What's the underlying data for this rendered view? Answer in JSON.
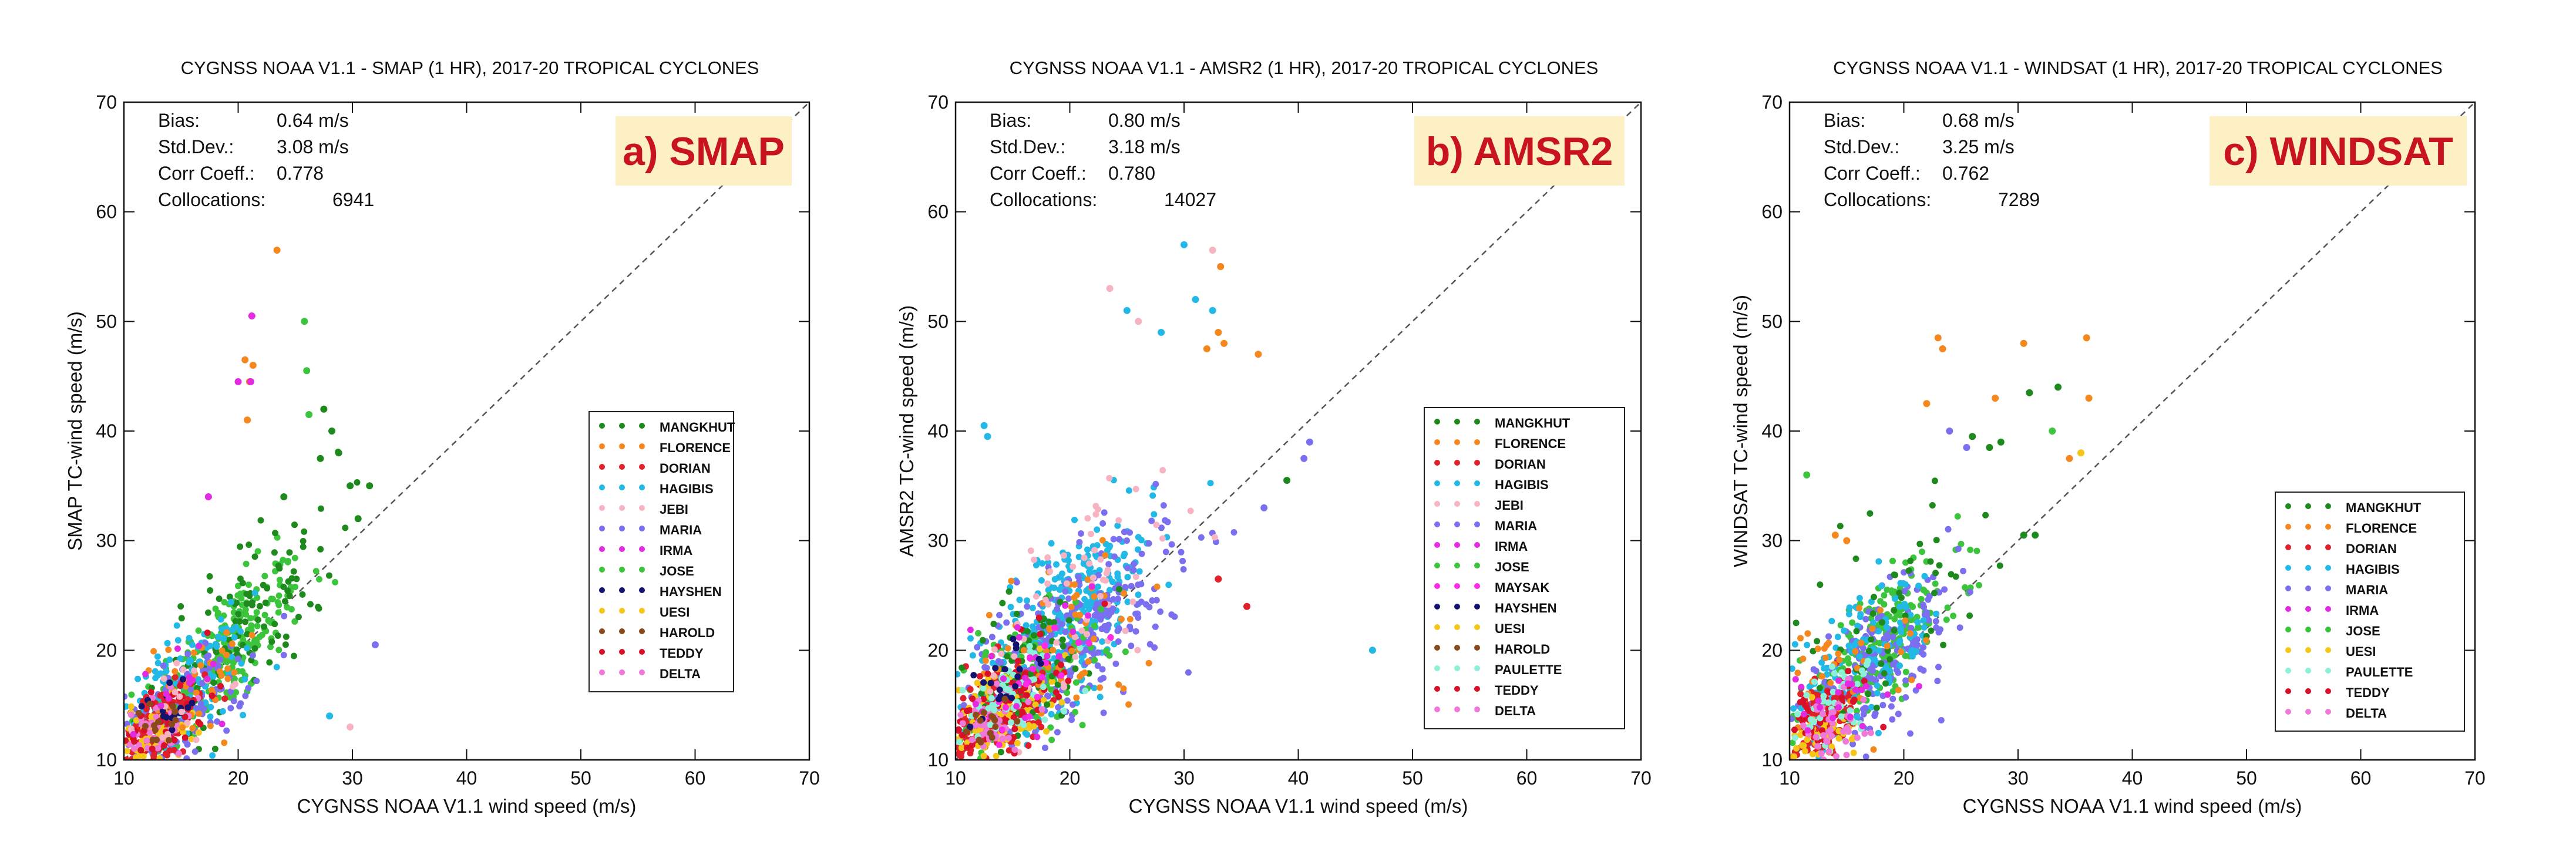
{
  "figure": {
    "description_panels": 3,
    "x_axis": {
      "label": "CYGNSS NOAA V1.1 wind speed (m/s)",
      "range": [
        10,
        70
      ],
      "ticks": [
        10,
        20,
        30,
        40,
        50,
        60,
        70
      ]
    },
    "y_axis": {
      "range": [
        10,
        70
      ],
      "ticks": [
        10,
        20,
        30,
        40,
        50,
        60,
        70
      ]
    }
  },
  "colors": {
    "MANGKHUT": "#1e8a1e",
    "FLORENCE": "#f5871f",
    "DORIAN": "#e0202a",
    "HAGIBIS": "#22b9e6",
    "JEBI": "#f7b3c2",
    "MARIA": "#7b6ff0",
    "IRMA": "#e22ae0",
    "JOSE": "#3cc43c",
    "MAYSAK": "#ff29e6",
    "HAYSHEN": "#141470",
    "UESI": "#f5c518",
    "HAROLD": "#8a4a1c",
    "PAULETTE": "#8df0d8",
    "TEDDY": "#d8102a",
    "DELTA": "#f078d8",
    "panel_label_text": "#c8141e",
    "panel_label_bg": "#fdf0c4",
    "one_to_one_line": "#555555"
  },
  "chart_data": [
    {
      "type": "scatter",
      "title": "CYGNSS NOAA V1.1 - SMAP (1 HR), 2017-20 TROPICAL CYCLONES",
      "panel_label": "a) SMAP",
      "xlabel": "CYGNSS NOAA V1.1 wind speed (m/s)",
      "ylabel": "SMAP TC-wind speed (m/s)",
      "xlim": [
        10,
        70
      ],
      "ylim": [
        10,
        70
      ],
      "reference_line": "1:1 dashed",
      "stats": [
        {
          "label": "Bias:",
          "value": "0.64 m/s"
        },
        {
          "label": "Std.Dev.:",
          "value": "3.08 m/s"
        },
        {
          "label": "Corr Coeff.:",
          "value": "0.778"
        },
        {
          "label": "Collocations:",
          "value": "6941"
        }
      ],
      "legend": [
        "MANGKHUT",
        "FLORENCE",
        "DORIAN",
        "HAGIBIS",
        "JEBI",
        "MARIA",
        "IRMA",
        "JOSE",
        "HAYSHEN",
        "UESI",
        "HAROLD",
        "TEDDY",
        "DELTA"
      ],
      "legend_position": "right-middle",
      "cloud": [
        {
          "storm": "JOSE",
          "n": 260,
          "cx": 18.5,
          "cy": 19.5,
          "sx": 3.6,
          "sy": 4.2,
          "rho": 0.75
        },
        {
          "storm": "MANGKHUT",
          "n": 110,
          "cx": 21.0,
          "cy": 23.0,
          "sx": 4.0,
          "sy": 5.5,
          "rho": 0.7
        },
        {
          "storm": "HAGIBIS",
          "n": 140,
          "cx": 15.0,
          "cy": 16.0,
          "sx": 3.0,
          "sy": 3.2,
          "rho": 0.6
        },
        {
          "storm": "MARIA",
          "n": 120,
          "cx": 15.0,
          "cy": 14.5,
          "sx": 3.0,
          "sy": 3.0,
          "rho": 0.6
        },
        {
          "storm": "DORIAN",
          "n": 110,
          "cx": 13.0,
          "cy": 13.0,
          "sx": 2.0,
          "sy": 2.0,
          "rho": 0.5
        },
        {
          "storm": "UESI",
          "n": 70,
          "cx": 12.5,
          "cy": 12.0,
          "sx": 1.8,
          "sy": 1.6,
          "rho": 0.4
        },
        {
          "storm": "FLORENCE",
          "n": 40,
          "cx": 16.0,
          "cy": 17.0,
          "sx": 3.0,
          "sy": 3.0,
          "rho": 0.5
        },
        {
          "storm": "DELTA",
          "n": 40,
          "cx": 12.5,
          "cy": 13.0,
          "sx": 1.8,
          "sy": 1.8,
          "rho": 0.4
        },
        {
          "storm": "TEDDY",
          "n": 40,
          "cx": 14.0,
          "cy": 14.0,
          "sx": 2.0,
          "sy": 2.0,
          "rho": 0.5
        },
        {
          "storm": "HAYSHEN",
          "n": 15,
          "cx": 14.0,
          "cy": 15.0,
          "sx": 1.5,
          "sy": 1.5,
          "rho": 0.4
        },
        {
          "storm": "JEBI",
          "n": 20,
          "cx": 14.0,
          "cy": 15.0,
          "sx": 2.5,
          "sy": 2.5,
          "rho": 0.4
        },
        {
          "storm": "HAROLD",
          "n": 15,
          "cx": 13.0,
          "cy": 13.0,
          "sx": 1.5,
          "sy": 1.5,
          "rho": 0.4
        },
        {
          "storm": "IRMA",
          "n": 15,
          "cx": 15.0,
          "cy": 16.0,
          "sx": 2.5,
          "sy": 3.0,
          "rho": 0.5
        }
      ],
      "points": [
        {
          "storm": "FLORENCE",
          "x": 23.4,
          "y": 56.5
        },
        {
          "storm": "FLORENCE",
          "x": 20.6,
          "y": 46.5
        },
        {
          "storm": "FLORENCE",
          "x": 21.3,
          "y": 46.0
        },
        {
          "storm": "FLORENCE",
          "x": 21.0,
          "y": 44.5
        },
        {
          "storm": "FLORENCE",
          "x": 20.8,
          "y": 41.0
        },
        {
          "storm": "IRMA",
          "x": 21.2,
          "y": 50.5
        },
        {
          "storm": "IRMA",
          "x": 20.0,
          "y": 44.5
        },
        {
          "storm": "IRMA",
          "x": 21.1,
          "y": 44.5
        },
        {
          "storm": "IRMA",
          "x": 17.4,
          "y": 34.0
        },
        {
          "storm": "JOSE",
          "x": 25.8,
          "y": 50.0
        },
        {
          "storm": "JOSE",
          "x": 26.0,
          "y": 45.5
        },
        {
          "storm": "JOSE",
          "x": 26.2,
          "y": 41.5
        },
        {
          "storm": "MANGKHUT",
          "x": 27.5,
          "y": 42.0
        },
        {
          "storm": "MANGKHUT",
          "x": 28.2,
          "y": 40.0
        },
        {
          "storm": "MANGKHUT",
          "x": 28.8,
          "y": 38.0
        },
        {
          "storm": "MANGKHUT",
          "x": 27.2,
          "y": 37.5
        },
        {
          "storm": "MANGKHUT",
          "x": 29.8,
          "y": 35.0
        },
        {
          "storm": "MANGKHUT",
          "x": 31.5,
          "y": 35.0
        },
        {
          "storm": "MANGKHUT",
          "x": 30.5,
          "y": 32.0
        },
        {
          "storm": "MANGKHUT",
          "x": 24.0,
          "y": 34.0
        },
        {
          "storm": "MARIA",
          "x": 32.0,
          "y": 20.5
        },
        {
          "storm": "JEBI",
          "x": 29.8,
          "y": 13.0
        },
        {
          "storm": "HAGIBIS",
          "x": 28.0,
          "y": 14.0
        }
      ]
    },
    {
      "type": "scatter",
      "title": "CYGNSS NOAA V1.1 - AMSR2 (1 HR), 2017-20 TROPICAL CYCLONES",
      "panel_label": "b) AMSR2",
      "xlabel": "CYGNSS NOAA V1.1 wind speed (m/s)",
      "ylabel": "AMSR2 TC-wind speed (m/s)",
      "xlim": [
        10,
        70
      ],
      "ylim": [
        10,
        70
      ],
      "reference_line": "1:1 dashed",
      "stats": [
        {
          "label": "Bias:",
          "value": "0.80 m/s"
        },
        {
          "label": "Std.Dev.:",
          "value": "3.18 m/s"
        },
        {
          "label": "Corr Coeff.:",
          "value": "0.780"
        },
        {
          "label": "Collocations:",
          "value": "14027"
        }
      ],
      "legend": [
        "MANGKHUT",
        "FLORENCE",
        "DORIAN",
        "HAGIBIS",
        "JEBI",
        "MARIA",
        "IRMA",
        "JOSE",
        "MAYSAK",
        "HAYSHEN",
        "UESI",
        "HAROLD",
        "PAULETTE",
        "TEDDY",
        "DELTA"
      ],
      "legend_position": "right-bottom",
      "cloud": [
        {
          "storm": "HAGIBIS",
          "n": 360,
          "cx": 19.5,
          "cy": 22.5,
          "sx": 4.0,
          "sy": 5.0,
          "rho": 0.7
        },
        {
          "storm": "MARIA",
          "n": 300,
          "cx": 20.0,
          "cy": 21.0,
          "sx": 5.0,
          "sy": 5.0,
          "rho": 0.7
        },
        {
          "storm": "JOSE",
          "n": 110,
          "cx": 16.0,
          "cy": 17.0,
          "sx": 3.5,
          "sy": 3.5,
          "rho": 0.6
        },
        {
          "storm": "DORIAN",
          "n": 200,
          "cx": 13.5,
          "cy": 14.0,
          "sx": 2.3,
          "sy": 2.5,
          "rho": 0.5
        },
        {
          "storm": "UESI",
          "n": 120,
          "cx": 13.5,
          "cy": 14.0,
          "sx": 2.5,
          "sy": 2.5,
          "rho": 0.5
        },
        {
          "storm": "MANGKHUT",
          "n": 70,
          "cx": 16.0,
          "cy": 18.0,
          "sx": 3.0,
          "sy": 4.0,
          "rho": 0.5
        },
        {
          "storm": "FLORENCE",
          "n": 60,
          "cx": 20.0,
          "cy": 22.0,
          "sx": 4.5,
          "sy": 5.0,
          "rho": 0.6
        },
        {
          "storm": "JEBI",
          "n": 60,
          "cx": 21.0,
          "cy": 25.0,
          "sx": 4.5,
          "sy": 6.0,
          "rho": 0.6
        },
        {
          "storm": "TEDDY",
          "n": 70,
          "cx": 14.0,
          "cy": 15.0,
          "sx": 2.5,
          "sy": 2.5,
          "rho": 0.5
        },
        {
          "storm": "DELTA",
          "n": 50,
          "cx": 13.0,
          "cy": 13.0,
          "sx": 2.0,
          "sy": 2.0,
          "rho": 0.4
        },
        {
          "storm": "PAULETTE",
          "n": 50,
          "cx": 15.0,
          "cy": 16.0,
          "sx": 2.5,
          "sy": 2.5,
          "rho": 0.5
        },
        {
          "storm": "IRMA",
          "n": 25,
          "cx": 16.0,
          "cy": 18.0,
          "sx": 3.0,
          "sy": 3.0,
          "rho": 0.5
        },
        {
          "storm": "MAYSAK",
          "n": 20,
          "cx": 16.0,
          "cy": 17.0,
          "sx": 2.5,
          "sy": 2.5,
          "rho": 0.5
        },
        {
          "storm": "HAYSHEN",
          "n": 20,
          "cx": 14.0,
          "cy": 17.0,
          "sx": 2.0,
          "sy": 2.0,
          "rho": 0.4
        },
        {
          "storm": "HAROLD",
          "n": 15,
          "cx": 13.0,
          "cy": 13.0,
          "sx": 1.5,
          "sy": 1.5,
          "rho": 0.4
        }
      ],
      "points": [
        {
          "storm": "HAGIBIS",
          "x": 30.0,
          "y": 57.0
        },
        {
          "storm": "JEBI",
          "x": 32.5,
          "y": 56.5
        },
        {
          "storm": "FLORENCE",
          "x": 33.2,
          "y": 55.0
        },
        {
          "storm": "HAGIBIS",
          "x": 31.0,
          "y": 52.0
        },
        {
          "storm": "HAGIBIS",
          "x": 32.5,
          "y": 51.0
        },
        {
          "storm": "FLORENCE",
          "x": 33.0,
          "y": 49.0
        },
        {
          "storm": "FLORENCE",
          "x": 33.5,
          "y": 48.0
        },
        {
          "storm": "FLORENCE",
          "x": 36.5,
          "y": 47.0
        },
        {
          "storm": "FLORENCE",
          "x": 32.0,
          "y": 47.5
        },
        {
          "storm": "JEBI",
          "x": 23.5,
          "y": 53.0
        },
        {
          "storm": "JEBI",
          "x": 26.0,
          "y": 50.0
        },
        {
          "storm": "HAGIBIS",
          "x": 25.0,
          "y": 51.0
        },
        {
          "storm": "HAGIBIS",
          "x": 28.0,
          "y": 49.0
        },
        {
          "storm": "MARIA",
          "x": 41.0,
          "y": 39.0
        },
        {
          "storm": "MARIA",
          "x": 40.5,
          "y": 37.5
        },
        {
          "storm": "MARIA",
          "x": 37.0,
          "y": 33.0
        },
        {
          "storm": "MANGKHUT",
          "x": 39.0,
          "y": 35.5
        },
        {
          "storm": "HAGIBIS",
          "x": 46.5,
          "y": 20.0
        },
        {
          "storm": "HAGIBIS",
          "x": 12.5,
          "y": 40.5
        },
        {
          "storm": "HAGIBIS",
          "x": 12.8,
          "y": 39.5
        },
        {
          "storm": "DORIAN",
          "x": 33.0,
          "y": 26.5
        },
        {
          "storm": "DORIAN",
          "x": 35.5,
          "y": 24.0
        }
      ]
    },
    {
      "type": "scatter",
      "title": "CYGNSS NOAA V1.1 - WINDSAT (1 HR), 2017-20 TROPICAL CYCLONES",
      "panel_label": "c) WINDSAT",
      "xlabel": "CYGNSS NOAA V1.1 wind speed (m/s)",
      "ylabel": "WINDSAT TC-wind speed (m/s)",
      "xlim": [
        10,
        70
      ],
      "ylim": [
        10,
        70
      ],
      "reference_line": "1:1 dashed",
      "stats": [
        {
          "label": "Bias:",
          "value": "0.68 m/s"
        },
        {
          "label": "Std.Dev.:",
          "value": "3.25 m/s"
        },
        {
          "label": "Corr Coeff.:",
          "value": "0.762"
        },
        {
          "label": "Collocations:",
          "value": "7289"
        }
      ],
      "legend": [
        "MANGKHUT",
        "FLORENCE",
        "DORIAN",
        "HAGIBIS",
        "MARIA",
        "IRMA",
        "JOSE",
        "UESI",
        "PAULETTE",
        "TEDDY",
        "DELTA"
      ],
      "legend_position": "right-bottom",
      "cloud": [
        {
          "storm": "JOSE",
          "n": 220,
          "cx": 18.0,
          "cy": 20.5,
          "sx": 3.5,
          "sy": 4.0,
          "rho": 0.75
        },
        {
          "storm": "MARIA",
          "n": 200,
          "cx": 17.5,
          "cy": 18.5,
          "sx": 3.5,
          "sy": 3.8,
          "rho": 0.7
        },
        {
          "storm": "HAGIBIS",
          "n": 130,
          "cx": 16.5,
          "cy": 19.0,
          "sx": 3.5,
          "sy": 3.5,
          "rho": 0.6
        },
        {
          "storm": "DORIAN",
          "n": 110,
          "cx": 12.5,
          "cy": 13.0,
          "sx": 1.8,
          "sy": 2.2,
          "rho": 0.5
        },
        {
          "storm": "MANGKHUT",
          "n": 60,
          "cx": 18.0,
          "cy": 22.0,
          "sx": 4.0,
          "sy": 5.0,
          "rho": 0.6
        },
        {
          "storm": "FLORENCE",
          "n": 40,
          "cx": 15.0,
          "cy": 18.0,
          "sx": 3.0,
          "sy": 3.5,
          "rho": 0.5
        },
        {
          "storm": "UESI",
          "n": 50,
          "cx": 12.5,
          "cy": 12.0,
          "sx": 1.8,
          "sy": 1.6,
          "rho": 0.4
        },
        {
          "storm": "TEDDY",
          "n": 40,
          "cx": 13.0,
          "cy": 14.0,
          "sx": 2.0,
          "sy": 2.0,
          "rho": 0.5
        },
        {
          "storm": "PAULETTE",
          "n": 40,
          "cx": 13.5,
          "cy": 15.0,
          "sx": 2.0,
          "sy": 2.0,
          "rho": 0.5
        },
        {
          "storm": "DELTA",
          "n": 40,
          "cx": 13.0,
          "cy": 13.0,
          "sx": 2.0,
          "sy": 2.0,
          "rho": 0.4
        },
        {
          "storm": "IRMA",
          "n": 20,
          "cx": 15.0,
          "cy": 16.0,
          "sx": 2.5,
          "sy": 2.5,
          "rho": 0.5
        }
      ],
      "points": [
        {
          "storm": "FLORENCE",
          "x": 23.0,
          "y": 48.5
        },
        {
          "storm": "FLORENCE",
          "x": 23.4,
          "y": 47.5
        },
        {
          "storm": "FLORENCE",
          "x": 30.5,
          "y": 48.0
        },
        {
          "storm": "FLORENCE",
          "x": 36.0,
          "y": 48.5
        },
        {
          "storm": "FLORENCE",
          "x": 36.2,
          "y": 43.0
        },
        {
          "storm": "FLORENCE",
          "x": 28.0,
          "y": 43.0
        },
        {
          "storm": "FLORENCE",
          "x": 22.0,
          "y": 42.5
        },
        {
          "storm": "FLORENCE",
          "x": 34.5,
          "y": 37.5
        },
        {
          "storm": "FLORENCE",
          "x": 14.0,
          "y": 30.5
        },
        {
          "storm": "FLORENCE",
          "x": 15.0,
          "y": 30.0
        },
        {
          "storm": "MANGKHUT",
          "x": 33.5,
          "y": 44.0
        },
        {
          "storm": "MANGKHUT",
          "x": 31.0,
          "y": 43.5
        },
        {
          "storm": "MANGKHUT",
          "x": 28.5,
          "y": 39.0
        },
        {
          "storm": "MANGKHUT",
          "x": 27.5,
          "y": 38.5
        },
        {
          "storm": "MANGKHUT",
          "x": 26.0,
          "y": 39.5
        },
        {
          "storm": "MANGKHUT",
          "x": 30.5,
          "y": 30.5
        },
        {
          "storm": "MANGKHUT",
          "x": 31.5,
          "y": 30.5
        },
        {
          "storm": "MARIA",
          "x": 24.0,
          "y": 40.0
        },
        {
          "storm": "MARIA",
          "x": 25.5,
          "y": 38.5
        },
        {
          "storm": "JOSE",
          "x": 11.5,
          "y": 36.0
        },
        {
          "storm": "JOSE",
          "x": 33.0,
          "y": 40.0
        },
        {
          "storm": "UESI",
          "x": 35.5,
          "y": 38.0
        }
      ]
    }
  ]
}
